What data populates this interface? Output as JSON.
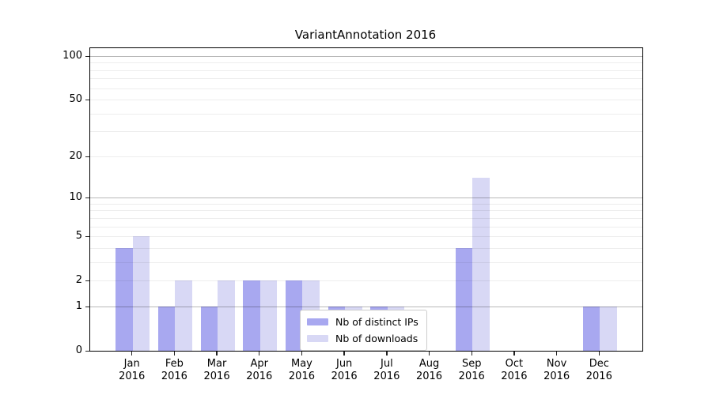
{
  "title": "VariantAnnotation 2016",
  "chart_data": {
    "type": "bar",
    "title": "VariantAnnotation 2016",
    "categories": [
      {
        "month": "Jan",
        "year": "2016"
      },
      {
        "month": "Feb",
        "year": "2016"
      },
      {
        "month": "Mar",
        "year": "2016"
      },
      {
        "month": "Apr",
        "year": "2016"
      },
      {
        "month": "May",
        "year": "2016"
      },
      {
        "month": "Jun",
        "year": "2016"
      },
      {
        "month": "Jul",
        "year": "2016"
      },
      {
        "month": "Aug",
        "year": "2016"
      },
      {
        "month": "Sep",
        "year": "2016"
      },
      {
        "month": "Oct",
        "year": "2016"
      },
      {
        "month": "Nov",
        "year": "2016"
      },
      {
        "month": "Dec",
        "year": "2016"
      }
    ],
    "series": [
      {
        "name": "Nb of distinct IPs",
        "color": "#a8a8f0",
        "values": [
          4,
          1,
          1,
          2,
          2,
          1,
          1,
          0,
          4,
          0,
          0,
          1
        ]
      },
      {
        "name": "Nb of downloads",
        "color": "#d8d8f5",
        "values": [
          5,
          2,
          2,
          2,
          2,
          1,
          1,
          0,
          14,
          0,
          0,
          1
        ]
      }
    ],
    "y_axis": {
      "scale": "log1p",
      "tick_values": [
        0,
        1,
        2,
        5,
        10,
        20,
        50,
        100
      ],
      "major_gridlines": [
        1,
        10,
        100
      ],
      "minor_gridlines": [
        2,
        3,
        4,
        5,
        6,
        7,
        8,
        9,
        20,
        30,
        40,
        50,
        60,
        70,
        80,
        90
      ],
      "ylim": [
        0,
        113
      ]
    },
    "xlabel": "",
    "ylabel": "",
    "grid": true,
    "legend_position": "lower center"
  },
  "colors": {
    "distinct_ips": "#a8a8f0",
    "downloads": "#d8d8f5",
    "spine": "#000000"
  }
}
